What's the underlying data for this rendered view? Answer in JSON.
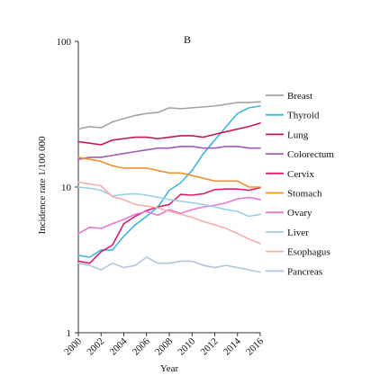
{
  "chart_data": {
    "type": "line",
    "panel_label": "B",
    "title": "",
    "xlabel": "Year",
    "ylabel": "Incidence rate 1/100 000",
    "y_scale": "log",
    "ylim": [
      1,
      100
    ],
    "xlim": [
      2000,
      2016
    ],
    "y_ticks": [
      {
        "value": 1,
        "label": "1"
      },
      {
        "value": 10,
        "label": "10"
      },
      {
        "value": 100,
        "label": "100"
      }
    ],
    "x_ticks": [
      {
        "value": 2000,
        "label": "2000"
      },
      {
        "value": 2002,
        "label": "2002"
      },
      {
        "value": 2004,
        "label": "2004"
      },
      {
        "value": 2006,
        "label": "2006"
      },
      {
        "value": 2008,
        "label": "2008"
      },
      {
        "value": 2010,
        "label": "2010"
      },
      {
        "value": 2012,
        "label": "2012"
      },
      {
        "value": 2014,
        "label": "2014"
      },
      {
        "value": 2016,
        "label": "2016"
      }
    ],
    "grid": false,
    "legend_position": "right",
    "x": [
      2000,
      2001,
      2002,
      2003,
      2004,
      2005,
      2006,
      2007,
      2008,
      2009,
      2010,
      2011,
      2012,
      2013,
      2014,
      2015,
      2016
    ],
    "series": [
      {
        "name": "Breast",
        "color": "#a3a3a3",
        "values": [
          25,
          26,
          25.5,
          28,
          29.5,
          31,
          32,
          32.5,
          35,
          34.5,
          35,
          35.5,
          36,
          37,
          38,
          38,
          38.5
        ]
      },
      {
        "name": "Thyroid",
        "color": "#3fb6de",
        "values": [
          3.4,
          3.3,
          3.7,
          3.7,
          4.6,
          5.5,
          6.3,
          7.3,
          9.5,
          10.7,
          13,
          17,
          21,
          26,
          32,
          35,
          36
        ]
      },
      {
        "name": "Lung",
        "color": "#c8194a",
        "values": [
          20.5,
          20,
          19.5,
          21,
          21.5,
          22,
          22,
          21.5,
          22,
          22.5,
          22.5,
          22,
          23,
          24,
          25,
          26,
          27.5
        ]
      },
      {
        "name": "Colorectum",
        "color": "#a25bb4",
        "values": [
          15.5,
          16,
          16,
          16.5,
          17,
          17.5,
          18,
          18.5,
          18.5,
          19,
          19,
          18.5,
          18.5,
          19,
          19,
          18.5,
          18.5
        ]
      },
      {
        "name": "Cervix",
        "color": "#de1c6d",
        "values": [
          3.1,
          3.0,
          3.6,
          4.0,
          5.6,
          6.3,
          6.9,
          7.3,
          7.6,
          8.9,
          8.8,
          9.0,
          9.6,
          9.7,
          9.7,
          9.5,
          9.9
        ]
      },
      {
        "name": "Stomach",
        "color": "#f0922d",
        "values": [
          16,
          15.5,
          15,
          14,
          13.5,
          13.5,
          13.5,
          13,
          12.5,
          12.5,
          12,
          11.5,
          11,
          11,
          11,
          10,
          10
        ]
      },
      {
        "name": "Ovary",
        "color": "#e378d8",
        "values": [
          4.8,
          5.3,
          5.2,
          5.6,
          6.0,
          6.5,
          6.8,
          6.4,
          7.0,
          6.6,
          7.0,
          7.3,
          7.5,
          7.8,
          8.3,
          8.5,
          8.2
        ]
      },
      {
        "name": "Liver",
        "color": "#9ad0e8",
        "values": [
          10,
          9.8,
          9.5,
          8.7,
          8.9,
          9.0,
          8.8,
          8.5,
          8.2,
          8.0,
          7.8,
          7.6,
          7.3,
          7.0,
          6.8,
          6.3,
          6.5
        ]
      },
      {
        "name": "Esophagus",
        "color": "#f4b2a7",
        "values": [
          10.8,
          10.5,
          10.2,
          8.6,
          8.2,
          7.6,
          7.4,
          7.2,
          6.8,
          6.5,
          6.2,
          5.8,
          5.5,
          5.2,
          4.8,
          4.4,
          4.1
        ]
      },
      {
        "name": "Pancreas",
        "color": "#b4c4e0",
        "values": [
          3.0,
          2.9,
          2.7,
          3.0,
          2.8,
          2.9,
          3.3,
          3.0,
          3.0,
          3.1,
          3.1,
          2.9,
          2.8,
          2.9,
          2.8,
          2.7,
          2.6
        ]
      }
    ]
  }
}
